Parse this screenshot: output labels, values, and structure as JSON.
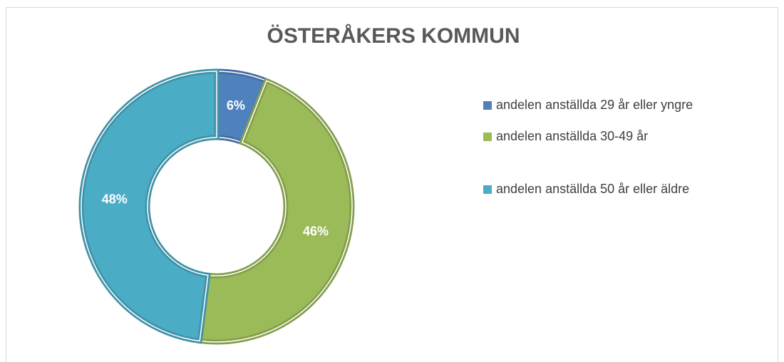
{
  "chart_data": {
    "type": "donut",
    "title": "ÖSTERÅKERS KOMMUN",
    "categories": [
      "andelen anställda 29 år eller yngre",
      "andelen anställda 30-49 år",
      "andelen anställda 50 år eller äldre"
    ],
    "values": [
      6,
      46,
      48
    ],
    "value_labels": [
      "6%",
      "46%",
      "48%"
    ],
    "colors": [
      "#4f81bd",
      "#9bbb59",
      "#4bacc6"
    ],
    "legend": "right"
  }
}
